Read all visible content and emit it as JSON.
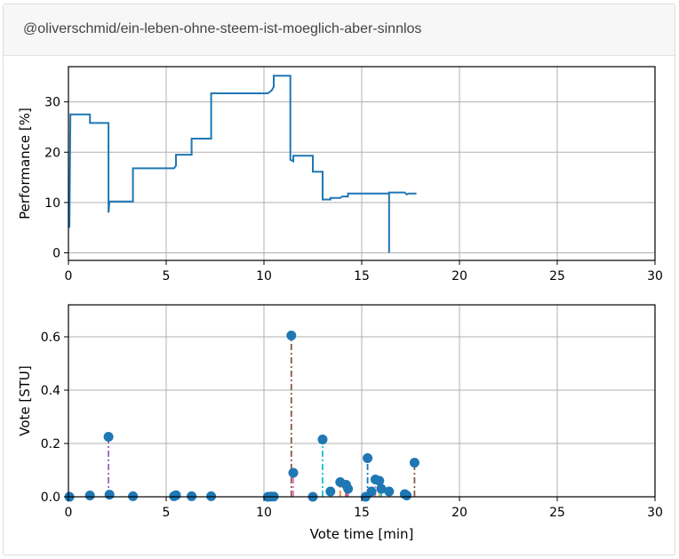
{
  "header": {
    "title": "@oliverschmid/ein-leben-ohne-steem-ist-moeglich-aber-sinnlos"
  },
  "chart_data": [
    {
      "type": "line",
      "ylabel": "Performance [%]",
      "xlabel": "",
      "xlim": [
        0,
        30
      ],
      "ylim": [
        -1.5,
        37
      ],
      "xticks": [
        "0",
        "5",
        "10",
        "15",
        "20",
        "25",
        "30"
      ],
      "yticks": [
        "0",
        "10",
        "20",
        "30"
      ],
      "grid": true,
      "color": "#1f77b4",
      "step": true,
      "points": [
        [
          0.05,
          5
        ],
        [
          0.1,
          27.5
        ],
        [
          1.1,
          27.5
        ],
        [
          1.1,
          25.8
        ],
        [
          2.05,
          25.8
        ],
        [
          2.05,
          8
        ],
        [
          2.1,
          10.2
        ],
        [
          3.3,
          10.2
        ],
        [
          3.3,
          16.8
        ],
        [
          5.4,
          16.8
        ],
        [
          5.5,
          17.3
        ],
        [
          5.5,
          19.5
        ],
        [
          6.3,
          19.5
        ],
        [
          6.3,
          22.7
        ],
        [
          7.3,
          22.7
        ],
        [
          7.3,
          31.7
        ],
        [
          10.2,
          31.7
        ],
        [
          10.4,
          32.3
        ],
        [
          10.5,
          33
        ],
        [
          10.5,
          35.2
        ],
        [
          11.35,
          35.2
        ],
        [
          11.35,
          18.5
        ],
        [
          11.5,
          18.2
        ],
        [
          11.5,
          19.3
        ],
        [
          12.5,
          19.3
        ],
        [
          12.5,
          16.1
        ],
        [
          13.0,
          16.1
        ],
        [
          13.0,
          10.6
        ],
        [
          13.4,
          10.6
        ],
        [
          13.4,
          10.9
        ],
        [
          13.9,
          10.9
        ],
        [
          14.0,
          11.2
        ],
        [
          14.3,
          11.2
        ],
        [
          14.3,
          11.8
        ],
        [
          16.4,
          11.8
        ],
        [
          16.4,
          0
        ],
        [
          16.4,
          12.0
        ],
        [
          17.2,
          12.0
        ],
        [
          17.3,
          11.6
        ],
        [
          17.4,
          11.8
        ],
        [
          17.8,
          11.8
        ]
      ]
    },
    {
      "type": "scatter",
      "xlabel": "Vote time [min]",
      "ylabel": "Vote [STU]",
      "xlim": [
        0,
        30
      ],
      "ylim": [
        0,
        0.72
      ],
      "xticks": [
        "0",
        "5",
        "10",
        "15",
        "20",
        "25",
        "30"
      ],
      "yticks": [
        "0.0",
        "0.2",
        "0.4",
        "0.6"
      ],
      "grid": true,
      "marker_color": "#1f77b4",
      "points": [
        {
          "x": 0.05,
          "y": 0.0
        },
        {
          "x": 1.1,
          "y": 0.005
        },
        {
          "x": 2.05,
          "y": 0.225,
          "stem": "#9467bd"
        },
        {
          "x": 2.1,
          "y": 0.008
        },
        {
          "x": 3.3,
          "y": 0.002
        },
        {
          "x": 5.4,
          "y": 0.002
        },
        {
          "x": 5.5,
          "y": 0.006
        },
        {
          "x": 6.3,
          "y": 0.002
        },
        {
          "x": 7.3,
          "y": 0.002
        },
        {
          "x": 10.2,
          "y": 0.0
        },
        {
          "x": 10.35,
          "y": 0.001
        },
        {
          "x": 10.5,
          "y": 0.001
        },
        {
          "x": 11.4,
          "y": 0.605,
          "stem": "#8c564b"
        },
        {
          "x": 11.5,
          "y": 0.09,
          "stem": "#e377c2"
        },
        {
          "x": 12.5,
          "y": 0.0
        },
        {
          "x": 13.0,
          "y": 0.215,
          "stem": "#17becf"
        },
        {
          "x": 13.4,
          "y": 0.02
        },
        {
          "x": 13.9,
          "y": 0.055,
          "stem": "#ff7f0e"
        },
        {
          "x": 14.2,
          "y": 0.045,
          "stem": "#d62728"
        },
        {
          "x": 14.3,
          "y": 0.03,
          "stem": "#9467bd"
        },
        {
          "x": 15.2,
          "y": 0.0
        },
        {
          "x": 15.3,
          "y": 0.145,
          "stem": "#1f77b4"
        },
        {
          "x": 15.5,
          "y": 0.02,
          "stem": "#8c564b"
        },
        {
          "x": 15.7,
          "y": 0.065,
          "stem": "#e377c2"
        },
        {
          "x": 15.9,
          "y": 0.06,
          "stem": "#bcbd22"
        },
        {
          "x": 16.0,
          "y": 0.03,
          "stem": "#17becf"
        },
        {
          "x": 16.4,
          "y": 0.02,
          "stem": "#ff7f0e"
        },
        {
          "x": 17.2,
          "y": 0.01
        },
        {
          "x": 17.3,
          "y": 0.005
        },
        {
          "x": 17.7,
          "y": 0.128,
          "stem": "#8c564b"
        }
      ]
    }
  ]
}
